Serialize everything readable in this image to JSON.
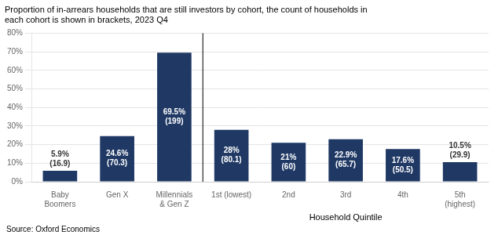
{
  "chart_data": {
    "type": "bar",
    "title": [
      "Proportion of in-arrears households that are still investors by cohort, the count of households in",
      "each cohort is shown in brackets, 2023 Q4"
    ],
    "annotations": [
      "Household Quintile",
      "Source: Oxford Economics"
    ],
    "categories": [
      "Baby\nBoomers",
      "Gen X",
      "Millennials\n& Gen Z",
      "1st (lowest)",
      "2nd",
      "3rd",
      "4th",
      "5th\n(highest)"
    ],
    "values": [
      5.9,
      24.6,
      69.5,
      28.0,
      21.0,
      22.9,
      17.6,
      10.5
    ],
    "value_labels": [
      "5.9%\n(16.9)",
      "24.6%\n(70.3)",
      "69.5%\n(199)",
      "28%\n(80.1)",
      "21%\n(60)",
      "22.9%\n(65.7)",
      "17.6%\n(50.5)",
      "10.5%\n(29.9)"
    ],
    "data_labels": true,
    "color": "#1f3864",
    "ylim": [
      0,
      80
    ],
    "yticks": [
      {
        "value": 0,
        "label": "0%"
      },
      {
        "value": 10,
        "label": "10%"
      },
      {
        "value": 20,
        "label": "20%"
      },
      {
        "value": 30,
        "label": "30%"
      },
      {
        "value": 40,
        "label": "40%"
      },
      {
        "value": 50,
        "label": "50%"
      },
      {
        "value": 60,
        "label": "60%"
      },
      {
        "value": 70,
        "label": "70%"
      },
      {
        "value": 80,
        "label": "80%"
      }
    ],
    "grid": true
  }
}
